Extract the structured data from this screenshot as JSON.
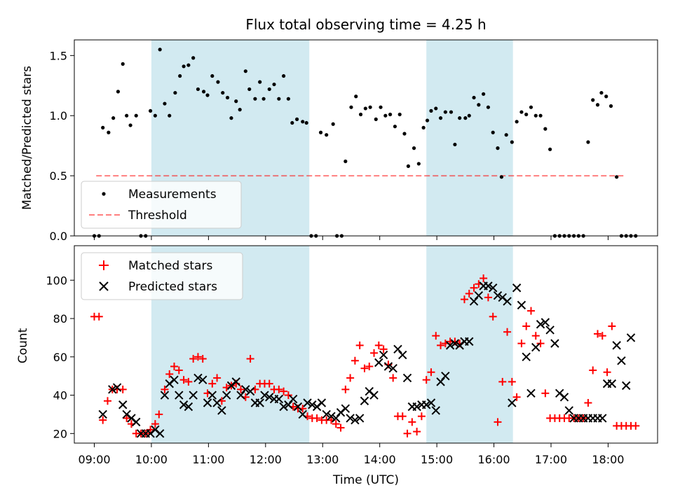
{
  "colors": {
    "shade": "#add8e6",
    "measurement": "#000000",
    "threshold": "#ff0000",
    "matched": "#ff0000",
    "predicted": "#000000"
  },
  "chart_data": [
    {
      "type": "scatter",
      "title": "Flux total observing time = 4.25 h",
      "xlabel": "",
      "ylabel": "Matched/Predicted stars",
      "ylim": [
        0,
        1.63
      ],
      "yticks": [
        0.0,
        0.5,
        1.0,
        1.5
      ],
      "ytick_labels": [
        "0.0",
        "0.5",
        "1.0",
        "1.5"
      ],
      "xticks_minutes": [
        0,
        60,
        120,
        180,
        240,
        300,
        360,
        420,
        480,
        540
      ],
      "xlim_minutes": [
        -21,
        592
      ],
      "shaded_intervals_minutes": [
        [
          60,
          226
        ],
        [
          349,
          440
        ]
      ],
      "legend": {
        "position": "lower-left",
        "entries": [
          "Measurements",
          "Threshold"
        ]
      },
      "threshold": {
        "name": "Threshold",
        "value": 0.5,
        "x_range_minutes": [
          2,
          559
        ]
      },
      "series": [
        {
          "name": "Measurements",
          "x_minutes": [
            0,
            5,
            9,
            15,
            20,
            25,
            30,
            34,
            38,
            44,
            49,
            54,
            59,
            64,
            69,
            74,
            79,
            85,
            90,
            94,
            99,
            104,
            109,
            115,
            119,
            124,
            130,
            135,
            140,
            144,
            149,
            153,
            159,
            163,
            169,
            174,
            178,
            184,
            189,
            194,
            199,
            204,
            208,
            213,
            219,
            223,
            228,
            233,
            238,
            244,
            251,
            255,
            260,
            264,
            270,
            275,
            280,
            285,
            290,
            296,
            301,
            306,
            311,
            316,
            321,
            326,
            330,
            336,
            341,
            346,
            350,
            354,
            359,
            364,
            369,
            375,
            379,
            384,
            390,
            394,
            399,
            404,
            409,
            414,
            419,
            424,
            428,
            433,
            439,
            444,
            449,
            454,
            459,
            464,
            469,
            474,
            479,
            484,
            489,
            494,
            499,
            504,
            509,
            514,
            519,
            524,
            529,
            533,
            538,
            543,
            549,
            554,
            559,
            564,
            569
          ],
          "y": [
            0,
            0,
            0.9,
            0.86,
            0.98,
            1.2,
            1.43,
            1.0,
            0.92,
            1.0,
            0,
            0,
            1.04,
            1.0,
            1.55,
            1.1,
            1.0,
            1.19,
            1.33,
            1.41,
            1.42,
            1.48,
            1.22,
            1.2,
            1.17,
            1.33,
            1.28,
            1.19,
            1.15,
            0.98,
            1.12,
            1.05,
            1.37,
            1.22,
            1.14,
            1.28,
            1.14,
            1.22,
            1.26,
            1.14,
            1.33,
            1.14,
            0.94,
            0.97,
            0.95,
            0.94,
            0,
            0,
            0.86,
            0.84,
            0.93,
            0,
            0,
            0.62,
            1.07,
            1.16,
            1.01,
            1.06,
            1.07,
            0.97,
            1.07,
            1.0,
            1.01,
            0.91,
            1.01,
            0.85,
            0.58,
            0.73,
            0.6,
            0.9,
            0.96,
            1.04,
            1.06,
            0.98,
            1.03,
            1.03,
            0.76,
            0.98,
            0.98,
            1.0,
            1.15,
            1.09,
            1.18,
            1.07,
            0.86,
            0.73,
            0.49,
            0.84,
            0.78,
            0.95,
            1.03,
            1.01,
            1.07,
            1.0,
            1.0,
            0.89,
            0.72,
            0,
            0,
            0,
            0,
            0,
            0,
            0,
            0.78,
            1.13,
            1.09,
            1.19,
            1.16,
            1.08,
            0.49,
            0,
            0,
            0,
            0
          ]
        }
      ]
    },
    {
      "type": "scatter",
      "title": "",
      "xlabel": "Time (UTC)",
      "ylabel": "Count",
      "ylim": [
        15,
        118
      ],
      "yticks": [
        20,
        40,
        60,
        80,
        100
      ],
      "ytick_labels": [
        "20",
        "40",
        "60",
        "80",
        "100"
      ],
      "xticks_minutes": [
        0,
        60,
        120,
        180,
        240,
        300,
        360,
        420,
        480,
        540
      ],
      "xtick_labels": [
        "09:00",
        "10:00",
        "11:00",
        "12:00",
        "13:00",
        "14:00",
        "15:00",
        "16:00",
        "17:00",
        "18:00"
      ],
      "xlim_minutes": [
        -21,
        592
      ],
      "shaded_intervals_minutes": [
        [
          60,
          226
        ],
        [
          349,
          440
        ]
      ],
      "legend": {
        "position": "top-left",
        "entries": [
          "Matched stars",
          "Predicted stars"
        ]
      },
      "series": [
        {
          "name": "Matched stars",
          "marker": "plus",
          "x_minutes": [
            0,
            5,
            9,
            14,
            19,
            24,
            30,
            34,
            39,
            44,
            49,
            54,
            59,
            64,
            68,
            74,
            79,
            84,
            89,
            94,
            99,
            104,
            109,
            114,
            119,
            124,
            129,
            134,
            139,
            144,
            149,
            154,
            159,
            164,
            169,
            174,
            179,
            184,
            189,
            194,
            199,
            204,
            209,
            214,
            219,
            224,
            229,
            234,
            239,
            244,
            249,
            254,
            259,
            264,
            269,
            274,
            279,
            284,
            289,
            294,
            299,
            304,
            309,
            314,
            319,
            324,
            329,
            334,
            339,
            344,
            349,
            354,
            359,
            364,
            369,
            374,
            379,
            384,
            389,
            394,
            399,
            404,
            409,
            414,
            419,
            424,
            429,
            434,
            439,
            444,
            449,
            454,
            459,
            464,
            469,
            474,
            479,
            484,
            489,
            494,
            499,
            504,
            509,
            514,
            519,
            524,
            529,
            534,
            539,
            544,
            549,
            554,
            559,
            564,
            569
          ],
          "y": [
            81,
            81,
            27,
            37,
            43,
            43,
            43,
            28,
            25,
            20,
            20,
            20,
            22,
            25,
            30,
            43,
            51,
            55,
            53,
            48,
            47,
            59,
            60,
            59,
            41,
            46,
            49,
            37,
            44,
            45,
            46,
            43,
            39,
            59,
            43,
            46,
            46,
            46,
            43,
            43,
            42,
            40,
            34,
            33,
            33,
            29,
            28,
            28,
            27,
            27,
            27,
            25,
            23,
            43,
            49,
            58,
            66,
            54,
            55,
            62,
            66,
            64,
            56,
            49,
            29,
            29,
            20,
            26,
            21,
            29,
            48,
            52,
            71,
            66,
            67,
            68,
            68,
            67,
            90,
            93,
            96,
            98,
            101,
            91,
            81,
            26,
            47,
            73,
            47,
            39,
            67,
            76,
            84,
            71,
            67,
            41,
            28,
            28,
            28,
            28,
            28,
            28,
            28,
            28,
            36,
            53,
            72,
            71,
            52,
            76,
            24,
            24,
            24,
            24,
            24
          ]
        },
        {
          "name": "Predicted stars",
          "marker": "x",
          "x_minutes": [
            9,
            19,
            24,
            30,
            34,
            39,
            44,
            49,
            54,
            59,
            64,
            69,
            74,
            79,
            84,
            89,
            94,
            99,
            104,
            109,
            114,
            119,
            124,
            129,
            134,
            139,
            144,
            149,
            154,
            159,
            164,
            169,
            174,
            179,
            184,
            189,
            194,
            199,
            204,
            209,
            214,
            219,
            224,
            229,
            234,
            239,
            244,
            249,
            254,
            259,
            264,
            269,
            274,
            279,
            284,
            289,
            294,
            299,
            304,
            309,
            314,
            319,
            324,
            329,
            334,
            339,
            344,
            349,
            354,
            359,
            364,
            369,
            374,
            379,
            384,
            389,
            394,
            399,
            404,
            409,
            414,
            419,
            424,
            429,
            434,
            439,
            444,
            449,
            454,
            459,
            464,
            469,
            474,
            479,
            484,
            489,
            494,
            499,
            504,
            509,
            514,
            519,
            524,
            529,
            534,
            539,
            544,
            549,
            554,
            559,
            564
          ],
          "y": [
            30,
            43,
            44,
            35,
            30,
            28,
            26,
            20,
            20,
            20,
            22,
            20,
            40,
            46,
            48,
            40,
            35,
            34,
            40,
            49,
            48,
            36,
            40,
            36,
            32,
            40,
            45,
            47,
            40,
            43,
            42,
            36,
            36,
            40,
            39,
            38,
            38,
            34,
            35,
            38,
            34,
            30,
            36,
            35,
            34,
            36,
            30,
            29,
            28,
            31,
            33,
            28,
            27,
            28,
            37,
            42,
            40,
            57,
            61,
            55,
            54,
            64,
            61,
            49,
            34,
            34,
            35,
            35,
            36,
            32,
            47,
            50,
            66,
            67,
            66,
            68,
            68,
            89,
            92,
            97,
            97,
            96,
            92,
            91,
            89,
            36,
            96,
            87,
            60,
            41,
            65,
            77,
            78,
            74,
            67,
            41,
            39,
            32,
            28,
            28,
            28,
            28,
            28,
            28,
            28,
            46,
            46,
            66,
            58,
            45,
            70
          ]
        }
      ]
    }
  ]
}
